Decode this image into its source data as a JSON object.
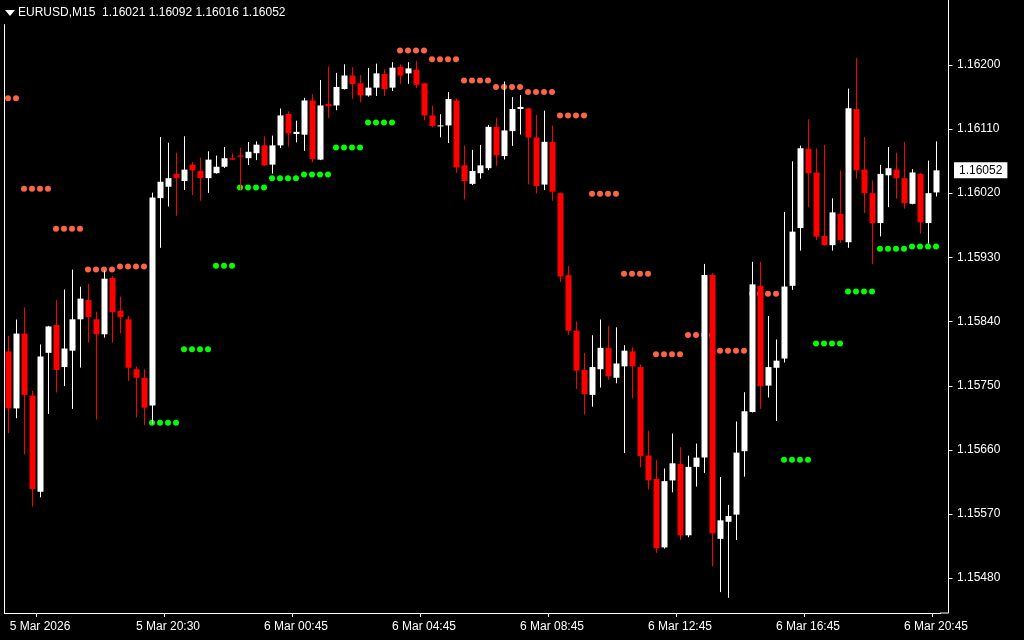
{
  "chart_data": {
    "type": "candlestick",
    "title": "EURUSD,M15  1.16021 1.16092 1.16016 1.16052",
    "categories": [
      null,
      null,
      null,
      null,
      "5 Mar 2026",
      null,
      null,
      null,
      null,
      null,
      null,
      null,
      null,
      null,
      null,
      null,
      null,
      null,
      null,
      null,
      "5 Mar 20:30",
      null,
      null,
      null,
      null,
      null,
      null,
      null,
      null,
      null,
      null,
      null,
      null,
      null,
      null,
      null,
      "6 Mar 00:45",
      null,
      null,
      null,
      null,
      null,
      null,
      null,
      null,
      null,
      null,
      null,
      null,
      null,
      null,
      null,
      "6 Mar 04:45",
      null,
      null,
      null,
      null,
      null,
      null,
      null,
      null,
      null,
      null,
      null,
      null,
      null,
      null,
      null,
      "6 Mar 08:45",
      null,
      null,
      null,
      null,
      null,
      null,
      null,
      null,
      null,
      null,
      null,
      null,
      null,
      null,
      null,
      "6 Mar 12:45",
      null,
      null,
      null,
      null,
      null,
      null,
      null,
      null,
      null,
      null,
      null,
      null,
      null,
      null,
      null,
      "6 Mar 16:45",
      null,
      null,
      null,
      null,
      null,
      null,
      null,
      null,
      null,
      null,
      null,
      null,
      null,
      null,
      null,
      "6 Mar 20:45"
    ],
    "ohlc": [
      [
        1.15798,
        1.15819,
        1.15684,
        1.15718
      ],
      [
        1.15718,
        1.15842,
        1.15705,
        1.15823
      ],
      [
        1.15823,
        1.15859,
        1.15654,
        1.15737
      ],
      [
        1.15736,
        1.15742,
        1.15581,
        1.15605
      ],
      [
        1.15601,
        1.15807,
        1.15594,
        1.15791
      ],
      [
        1.15796,
        1.15833,
        1.15711,
        1.15833
      ],
      [
        1.15835,
        1.15869,
        1.15741,
        1.15772
      ],
      [
        1.15776,
        1.15884,
        1.1575,
        1.15802
      ],
      [
        1.15799,
        1.15912,
        1.15718,
        1.15843
      ],
      [
        1.15843,
        1.15888,
        1.15776,
        1.15872
      ],
      [
        1.1587,
        1.15892,
        1.15811,
        1.15846
      ],
      [
        1.15843,
        1.15853,
        1.15703,
        1.15822
      ],
      [
        1.15822,
        1.15911,
        1.15818,
        1.159
      ],
      [
        1.15901,
        1.15903,
        1.15811,
        1.15853
      ],
      [
        1.15855,
        1.15874,
        1.15824,
        1.15846
      ],
      [
        1.15843,
        1.15847,
        1.15757,
        1.15775
      ],
      [
        1.15773,
        1.15776,
        1.15706,
        1.15761
      ],
      [
        1.15761,
        1.15772,
        1.15695,
        1.15719
      ],
      [
        1.15722,
        1.1602,
        1.15697,
        1.16014
      ],
      [
        1.16013,
        1.16098,
        1.15944,
        1.16036
      ],
      [
        1.16029,
        1.1609,
        1.16002,
        1.16041
      ],
      [
        1.16047,
        1.16076,
        1.15989,
        1.16041
      ],
      [
        1.16037,
        1.16099,
        1.16025,
        1.16053
      ],
      [
        1.1606,
        1.16063,
        1.16018,
        1.16052
      ],
      [
        1.16051,
        1.16069,
        1.1601,
        1.16041
      ],
      [
        1.16041,
        1.16078,
        1.16021,
        1.16067
      ],
      [
        1.16048,
        1.16072,
        1.16048,
        1.16057
      ],
      [
        1.16057,
        1.16084,
        1.16056,
        1.16069
      ],
      [
        1.16069,
        1.16075,
        1.16067,
        1.16067
      ],
      [
        1.16073,
        1.16083,
        1.16025,
        1.16071
      ],
      [
        1.16069,
        1.16091,
        1.1606,
        1.16078
      ],
      [
        1.16076,
        1.16092,
        1.16067,
        1.16088
      ],
      [
        1.16087,
        1.16099,
        1.16059,
        1.16059
      ],
      [
        1.1606,
        1.161,
        1.16048,
        1.16087
      ],
      [
        1.16087,
        1.16138,
        1.16084,
        1.16129
      ],
      [
        1.16131,
        1.16134,
        1.16086,
        1.16104
      ],
      [
        1.16103,
        1.16121,
        1.16092,
        1.16106
      ],
      [
        1.16102,
        1.16153,
        1.1608,
        1.1615
      ],
      [
        1.1615,
        1.16158,
        1.16064,
        1.16068
      ],
      [
        1.16067,
        1.16178,
        1.16067,
        1.16143
      ],
      [
        1.16145,
        1.16197,
        1.16126,
        1.16142
      ],
      [
        1.16143,
        1.16188,
        1.16137,
        1.16169
      ],
      [
        1.16166,
        1.162,
        1.16166,
        1.16185
      ],
      [
        1.16185,
        1.16196,
        1.16153,
        1.16173
      ],
      [
        1.16174,
        1.16185,
        1.16148,
        1.16157
      ],
      [
        1.16157,
        1.16195,
        1.16156,
        1.16168
      ],
      [
        1.16168,
        1.16201,
        1.16157,
        1.16188
      ],
      [
        1.16187,
        1.16193,
        1.16157,
        1.16166
      ],
      [
        1.16168,
        1.16203,
        1.16164,
        1.16196
      ],
      [
        1.16197,
        1.162,
        1.16174,
        1.16185
      ],
      [
        1.16188,
        1.16203,
        1.16174,
        1.16195
      ],
      [
        1.16193,
        1.16205,
        1.16168,
        1.16172
      ],
      [
        1.16174,
        1.16174,
        1.16123,
        1.16129
      ],
      [
        1.16129,
        1.16142,
        1.16113,
        1.16114
      ],
      [
        1.16114,
        1.1613,
        1.16099,
        1.16115
      ],
      [
        1.16115,
        1.16161,
        1.16091,
        1.16152
      ],
      [
        1.1615,
        1.16152,
        1.16049,
        1.16056
      ],
      [
        1.16059,
        1.16086,
        1.16012,
        1.16037
      ],
      [
        1.16033,
        1.1608,
        1.16032,
        1.16051
      ],
      [
        1.16048,
        1.16087,
        1.16041,
        1.16059
      ],
      [
        1.16055,
        1.16115,
        1.16053,
        1.16113
      ],
      [
        1.16113,
        1.16125,
        1.16059,
        1.16073
      ],
      [
        1.16072,
        1.16176,
        1.16068,
        1.16108
      ],
      [
        1.16107,
        1.16154,
        1.16087,
        1.16138
      ],
      [
        1.16138,
        1.16157,
        1.16103,
        1.16141
      ],
      [
        1.16139,
        1.16139,
        1.16033,
        1.16098
      ],
      [
        1.16098,
        1.16129,
        1.1602,
        1.1603
      ],
      [
        1.16032,
        1.16135,
        1.16025,
        1.16092
      ],
      [
        1.16092,
        1.16114,
        1.1601,
        1.16022
      ],
      [
        1.1602,
        1.1602,
        1.15896,
        1.15903
      ],
      [
        1.15905,
        1.15917,
        1.15822,
        1.15827
      ],
      [
        1.15827,
        1.15839,
        1.15746,
        1.15771
      ],
      [
        1.15772,
        1.15795,
        1.1571,
        1.15738
      ],
      [
        1.15737,
        1.1582,
        1.15721,
        1.15776
      ],
      [
        1.15773,
        1.15842,
        1.15748,
        1.15803
      ],
      [
        1.15803,
        1.15833,
        1.15759,
        1.15763
      ],
      [
        1.15761,
        1.15831,
        1.15754,
        1.15781
      ],
      [
        1.15777,
        1.15806,
        1.15656,
        1.15799
      ],
      [
        1.15798,
        1.15803,
        1.15733,
        1.15777
      ],
      [
        1.15776,
        1.15779,
        1.15636,
        1.15651
      ],
      [
        1.15652,
        1.15686,
        1.15605,
        1.15617
      ],
      [
        1.15619,
        1.15645,
        1.15516,
        1.15522
      ],
      [
        1.15523,
        1.15633,
        1.15522,
        1.15616
      ],
      [
        1.15617,
        1.15682,
        1.15601,
        1.15641
      ],
      [
        1.1564,
        1.15663,
        1.15534,
        1.1554
      ],
      [
        1.1554,
        1.15651,
        1.15538,
        1.15636
      ],
      [
        1.15636,
        1.15668,
        1.15609,
        1.15649
      ],
      [
        1.15649,
        1.1592,
        1.15628,
        1.15905
      ],
      [
        1.15905,
        1.15907,
        1.15497,
        1.15543
      ],
      [
        1.15535,
        1.15621,
        1.15461,
        1.15561
      ],
      [
        1.15559,
        1.15582,
        1.15453,
        1.15567
      ],
      [
        1.15569,
        1.15699,
        1.15534,
        1.15656
      ],
      [
        1.15658,
        1.1574,
        1.15623,
        1.15714
      ],
      [
        1.15713,
        1.15923,
        1.15713,
        1.15892
      ],
      [
        1.1589,
        1.15923,
        1.15718,
        1.15749
      ],
      [
        1.1575,
        1.15847,
        1.15734,
        1.15776
      ],
      [
        1.15775,
        1.15814,
        1.15701,
        1.15785
      ],
      [
        1.15788,
        1.15993,
        1.15783,
        1.15889
      ],
      [
        1.1589,
        1.16064,
        1.15885,
        1.15966
      ],
      [
        1.15971,
        1.16086,
        1.1594,
        1.16083
      ],
      [
        1.16082,
        1.16123,
        1.16001,
        1.16048
      ],
      [
        1.16049,
        1.16082,
        1.15955,
        1.15959
      ],
      [
        1.1596,
        1.16087,
        1.15947,
        1.15947
      ],
      [
        1.15947,
        1.16012,
        1.1594,
        1.15993
      ],
      [
        1.15991,
        1.16051,
        1.15951,
        1.15954
      ],
      [
        1.15951,
        1.16166,
        1.15944,
        1.16139
      ],
      [
        1.16138,
        1.16209,
        1.16041,
        1.16052
      ],
      [
        1.16053,
        1.16098,
        1.15993,
        1.1602
      ],
      [
        1.1602,
        1.16037,
        1.15921,
        1.15978
      ],
      [
        1.15978,
        1.16059,
        1.1596,
        1.16047
      ],
      [
        1.16045,
        1.16084,
        1.16001,
        1.16055
      ],
      [
        1.16053,
        1.16076,
        1.16013,
        1.16041
      ],
      [
        1.16041,
        1.16091,
        1.15999,
        1.16006
      ],
      [
        1.16005,
        1.16053,
        1.16005,
        1.16049
      ],
      [
        1.16047,
        1.16048,
        1.15964,
        1.15979
      ],
      [
        1.15978,
        1.16065,
        1.1595,
        1.1602
      ],
      [
        1.16021,
        1.16092,
        1.16016,
        1.16052
      ]
    ],
    "colors": [
      "#ff0000",
      "#ffffff",
      "#ff0000",
      "#ff0000",
      "#ffffff",
      "#ffffff",
      "#ff0000",
      "#ffffff",
      "#ffffff",
      "#ffffff",
      "#ff0000",
      "#ff0000",
      "#ffffff",
      "#ff0000",
      "#ff0000",
      "#ff0000",
      "#ff0000",
      "#ff0000",
      "#ffffff",
      "#ffffff",
      "#ffffff",
      "#ff0000",
      "#ffffff",
      "#ff0000",
      "#ff0000",
      "#ffffff",
      "#ffffff",
      "#ffffff",
      "#ff0000",
      "#ff0000",
      "#ffffff",
      "#ffffff",
      "#ff0000",
      "#ffffff",
      "#ffffff",
      "#ff0000",
      "#ffffff",
      "#ffffff",
      "#ff0000",
      "#ffffff",
      "#ff0000",
      "#ffffff",
      "#ffffff",
      "#ff0000",
      "#ff0000",
      "#ffffff",
      "#ffffff",
      "#ff0000",
      "#ffffff",
      "#ff0000",
      "#ffffff",
      "#ff0000",
      "#ff0000",
      "#ff0000",
      "#ffffff",
      "#ffffff",
      "#ff0000",
      "#ff0000",
      "#ffffff",
      "#ffffff",
      "#ffffff",
      "#ff0000",
      "#ffffff",
      "#ffffff",
      "#ffffff",
      "#ff0000",
      "#ff0000",
      "#ffffff",
      "#ff0000",
      "#ff0000",
      "#ff0000",
      "#ff0000",
      "#ff0000",
      "#ffffff",
      "#ffffff",
      "#ff0000",
      "#ffffff",
      "#ffffff",
      "#ff0000",
      "#ff0000",
      "#ff0000",
      "#ff0000",
      "#ffffff",
      "#ffffff",
      "#ff0000",
      "#ffffff",
      "#ffffff",
      "#ffffff",
      "#ff0000",
      "#ffffff",
      "#ffffff",
      "#ffffff",
      "#ffffff",
      "#ffffff",
      "#ff0000",
      "#ffffff",
      "#ffffff",
      "#ffffff",
      "#ffffff",
      "#ffffff",
      "#ff0000",
      "#ff0000",
      "#ff0000",
      "#ffffff",
      "#ff0000",
      "#ffffff",
      "#ff0000",
      "#ff0000",
      "#ff0000",
      "#ffffff",
      "#ffffff",
      "#ff0000",
      "#ff0000",
      "#ffffff",
      "#ff0000",
      "#ffffff",
      "#ffffff"
    ],
    "series": [
      {
        "type": "scatter",
        "color": "#ff6347",
        "values": [
          1.16153,
          1.16153,
          1.16026,
          1.16026,
          1.16026,
          1.16026,
          1.1597,
          1.1597,
          1.1597,
          1.1597,
          1.15913,
          1.15913,
          1.15913,
          1.15913,
          1.15917,
          1.15917,
          1.15917,
          1.15917,
          null,
          null,
          null,
          null,
          null,
          null,
          null,
          null,
          null,
          null,
          null,
          null,
          null,
          null,
          null,
          null,
          null,
          null,
          null,
          null,
          null,
          null,
          null,
          null,
          null,
          null,
          null,
          null,
          null,
          null,
          null,
          1.1622,
          1.1622,
          1.1622,
          1.1622,
          1.16208,
          1.16208,
          1.16208,
          1.16208,
          1.16178,
          1.16178,
          1.16178,
          1.16178,
          1.16169,
          1.16169,
          1.16169,
          1.16169,
          1.16162,
          1.16162,
          1.16162,
          1.16162,
          1.16129,
          1.16129,
          1.16129,
          1.16129,
          1.16019,
          1.16019,
          1.16019,
          1.16019,
          1.15907,
          1.15907,
          1.15907,
          1.15907,
          1.15794,
          1.15794,
          1.15794,
          1.15794,
          1.15821,
          1.15821,
          1.15821,
          1.15821,
          1.15799,
          1.15799,
          1.15799,
          1.15799,
          1.15879,
          1.15879,
          1.15879,
          1.15879,
          null,
          null,
          null,
          null,
          null,
          null,
          null,
          null,
          null,
          null,
          null,
          null,
          null,
          null,
          null,
          null,
          null,
          null,
          null,
          null
        ]
      },
      {
        "type": "scatter",
        "color": "#00ff00",
        "values": [
          null,
          null,
          null,
          null,
          null,
          null,
          null,
          null,
          null,
          null,
          null,
          null,
          null,
          null,
          null,
          null,
          null,
          null,
          1.15698,
          1.15698,
          1.15698,
          1.15698,
          1.15801,
          1.15801,
          1.15801,
          1.15801,
          1.15918,
          1.15918,
          1.15918,
          1.16028,
          1.16028,
          1.16028,
          1.16028,
          1.16041,
          1.16041,
          1.16041,
          1.16041,
          1.16046,
          1.16046,
          1.16046,
          1.16046,
          1.16084,
          1.16084,
          1.16084,
          1.16084,
          1.16119,
          1.16119,
          1.16119,
          1.16119,
          null,
          null,
          null,
          null,
          null,
          null,
          null,
          null,
          null,
          null,
          null,
          null,
          null,
          null,
          null,
          null,
          null,
          null,
          null,
          null,
          null,
          null,
          null,
          null,
          null,
          null,
          null,
          null,
          null,
          null,
          null,
          null,
          null,
          null,
          null,
          null,
          null,
          null,
          null,
          null,
          null,
          null,
          null,
          null,
          null,
          null,
          null,
          null,
          1.15646,
          1.15646,
          1.15646,
          1.15646,
          1.15809,
          1.15809,
          1.15809,
          1.15809,
          1.15882,
          1.15882,
          1.15882,
          1.15882,
          1.15942,
          1.15942,
          1.15942,
          1.15942,
          1.15945,
          1.15945,
          1.15945,
          1.15945
        ]
      }
    ],
    "marker": "circle",
    "ylim": [
      1.15431,
      1.16257
    ],
    "yticks": [
      {
        "value": 1.1548,
        "label": "1.15480"
      },
      {
        "value": 1.1557,
        "label": "1.15570"
      },
      {
        "value": 1.1566,
        "label": "1.15660"
      },
      {
        "value": 1.1575,
        "label": "1.15750"
      },
      {
        "value": 1.1584,
        "label": "1.15840"
      },
      {
        "value": 1.1593,
        "label": "1.15930"
      },
      {
        "value": 1.1602,
        "label": "1.16020"
      },
      {
        "value": 1.1611,
        "label": "1.16110"
      },
      {
        "value": 1.162,
        "label": "1.16200"
      }
    ],
    "annotations": [
      "1.16052"
    ]
  }
}
